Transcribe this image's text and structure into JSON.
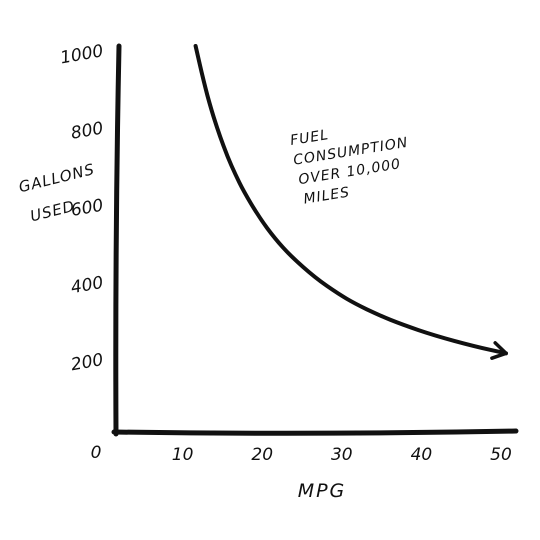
{
  "chart_data": {
    "type": "line",
    "xlabel": "MPG",
    "ylabel_lines": [
      "GALLONS",
      "USED"
    ],
    "annotation_lines": [
      "FUEL",
      "CONSUMPTION",
      "OVER 10,000",
      "MILES"
    ],
    "xlim": [
      0,
      50
    ],
    "ylim": [
      0,
      1000
    ],
    "x_ticks": [
      10,
      20,
      30,
      40,
      50
    ],
    "y_ticks": [
      200,
      400,
      600,
      800,
      1000
    ],
    "origin_label": "0",
    "grid": false,
    "arrow_at_end": true,
    "series": [
      {
        "x": [
          10,
          11,
          12,
          13,
          14,
          15,
          16,
          18,
          20,
          22,
          25,
          28,
          30,
          33,
          36,
          40,
          45,
          49
        ],
        "y": [
          1000,
          909,
          833,
          769,
          714,
          667,
          625,
          556,
          500,
          455,
          400,
          357,
          333,
          303,
          278,
          250,
          222,
          204
        ]
      }
    ]
  },
  "colors": {
    "ink": "#111111",
    "background": "#ffffff"
  }
}
